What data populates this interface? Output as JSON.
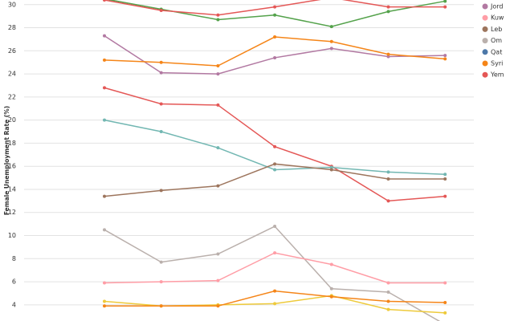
{
  "chart_data": {
    "type": "line",
    "y_axis_label": "Female Unemployment Rate (%)",
    "categories": [
      null,
      null,
      null,
      null,
      null,
      null,
      null
    ],
    "ylim": [
      2.6,
      30.4
    ],
    "yticks": [
      4,
      6,
      8,
      10,
      12,
      14,
      16,
      18,
      20,
      22,
      24,
      26,
      28,
      30
    ],
    "grid": true,
    "legend_position": "right",
    "legend": [
      {
        "label": "Jord",
        "color": "#b279a2"
      },
      {
        "label": "Kuw",
        "color": "#ff9da6"
      },
      {
        "label": "Leb",
        "color": "#9d755d"
      },
      {
        "label": "Om",
        "color": "#bab0ac"
      },
      {
        "label": "Qat",
        "color": "#4c78a8"
      },
      {
        "label": "Syri",
        "color": "#f58518"
      },
      {
        "label": "Yem",
        "color": "#e45756"
      }
    ],
    "series": [
      {
        "color": "#54a24b",
        "values": [
          30.5,
          29.6,
          28.7,
          29.1,
          28.1,
          29.4,
          30.3
        ]
      },
      {
        "color": "#e45756",
        "values": [
          30.4,
          29.5,
          29.1,
          29.8,
          30.6,
          29.8,
          29.8
        ]
      },
      {
        "color": "#b279a2",
        "values": [
          27.3,
          24.1,
          24.0,
          25.4,
          26.2,
          25.5,
          25.6
        ]
      },
      {
        "color": "#f58518",
        "values": [
          25.2,
          25.0,
          24.7,
          27.2,
          26.8,
          25.7,
          25.3
        ]
      },
      {
        "color": "#e45756",
        "values": [
          22.8,
          21.4,
          21.3,
          17.7,
          16.0,
          13.0,
          13.4
        ]
      },
      {
        "color": "#72b7b2",
        "values": [
          20.0,
          19.0,
          17.6,
          15.7,
          15.9,
          15.5,
          15.3
        ]
      },
      {
        "color": "#9d755d",
        "values": [
          13.4,
          13.9,
          14.3,
          16.2,
          15.7,
          14.9,
          14.9
        ]
      },
      {
        "color": "#bab0ac",
        "values": [
          10.5,
          7.7,
          8.4,
          10.8,
          5.4,
          5.1,
          2.3
        ]
      },
      {
        "color": "#ff9da6",
        "values": [
          5.9,
          6.0,
          6.1,
          8.5,
          7.5,
          5.9,
          5.9
        ]
      },
      {
        "color": "#eeca3b",
        "values": [
          4.3,
          3.9,
          4.0,
          4.1,
          4.8,
          3.6,
          3.3
        ]
      },
      {
        "color": "#f58518",
        "values": [
          3.9,
          3.9,
          3.9,
          5.2,
          4.7,
          4.3,
          4.2
        ]
      }
    ]
  }
}
